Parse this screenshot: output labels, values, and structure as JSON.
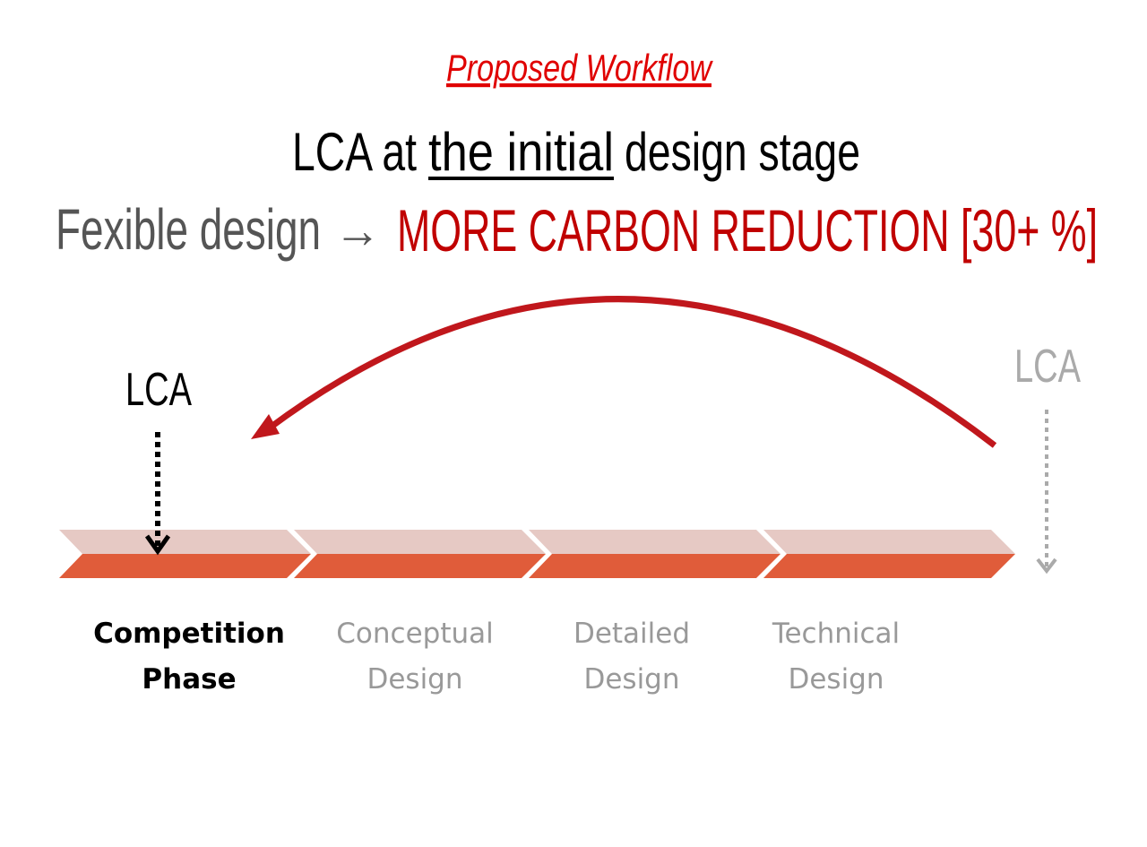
{
  "header": {
    "title": "Proposed Workflow"
  },
  "headline": {
    "parts": [
      "LCA at",
      "the initial",
      "design stage"
    ]
  },
  "subheadline": {
    "left": "Fexible design",
    "arrow": "→",
    "highlight": "MORE CARBON REDUCTION [30+ %]"
  },
  "diagram": {
    "lca_current": "LCA",
    "lca_original": "LCA",
    "phases": [
      {
        "lines": [
          "Competition",
          "Phase"
        ]
      },
      {
        "lines": [
          "Conceptual",
          "Design"
        ]
      },
      {
        "lines": [
          "Detailed",
          "Design"
        ]
      },
      {
        "lines": [
          "Technical",
          "Design"
        ]
      }
    ]
  }
}
